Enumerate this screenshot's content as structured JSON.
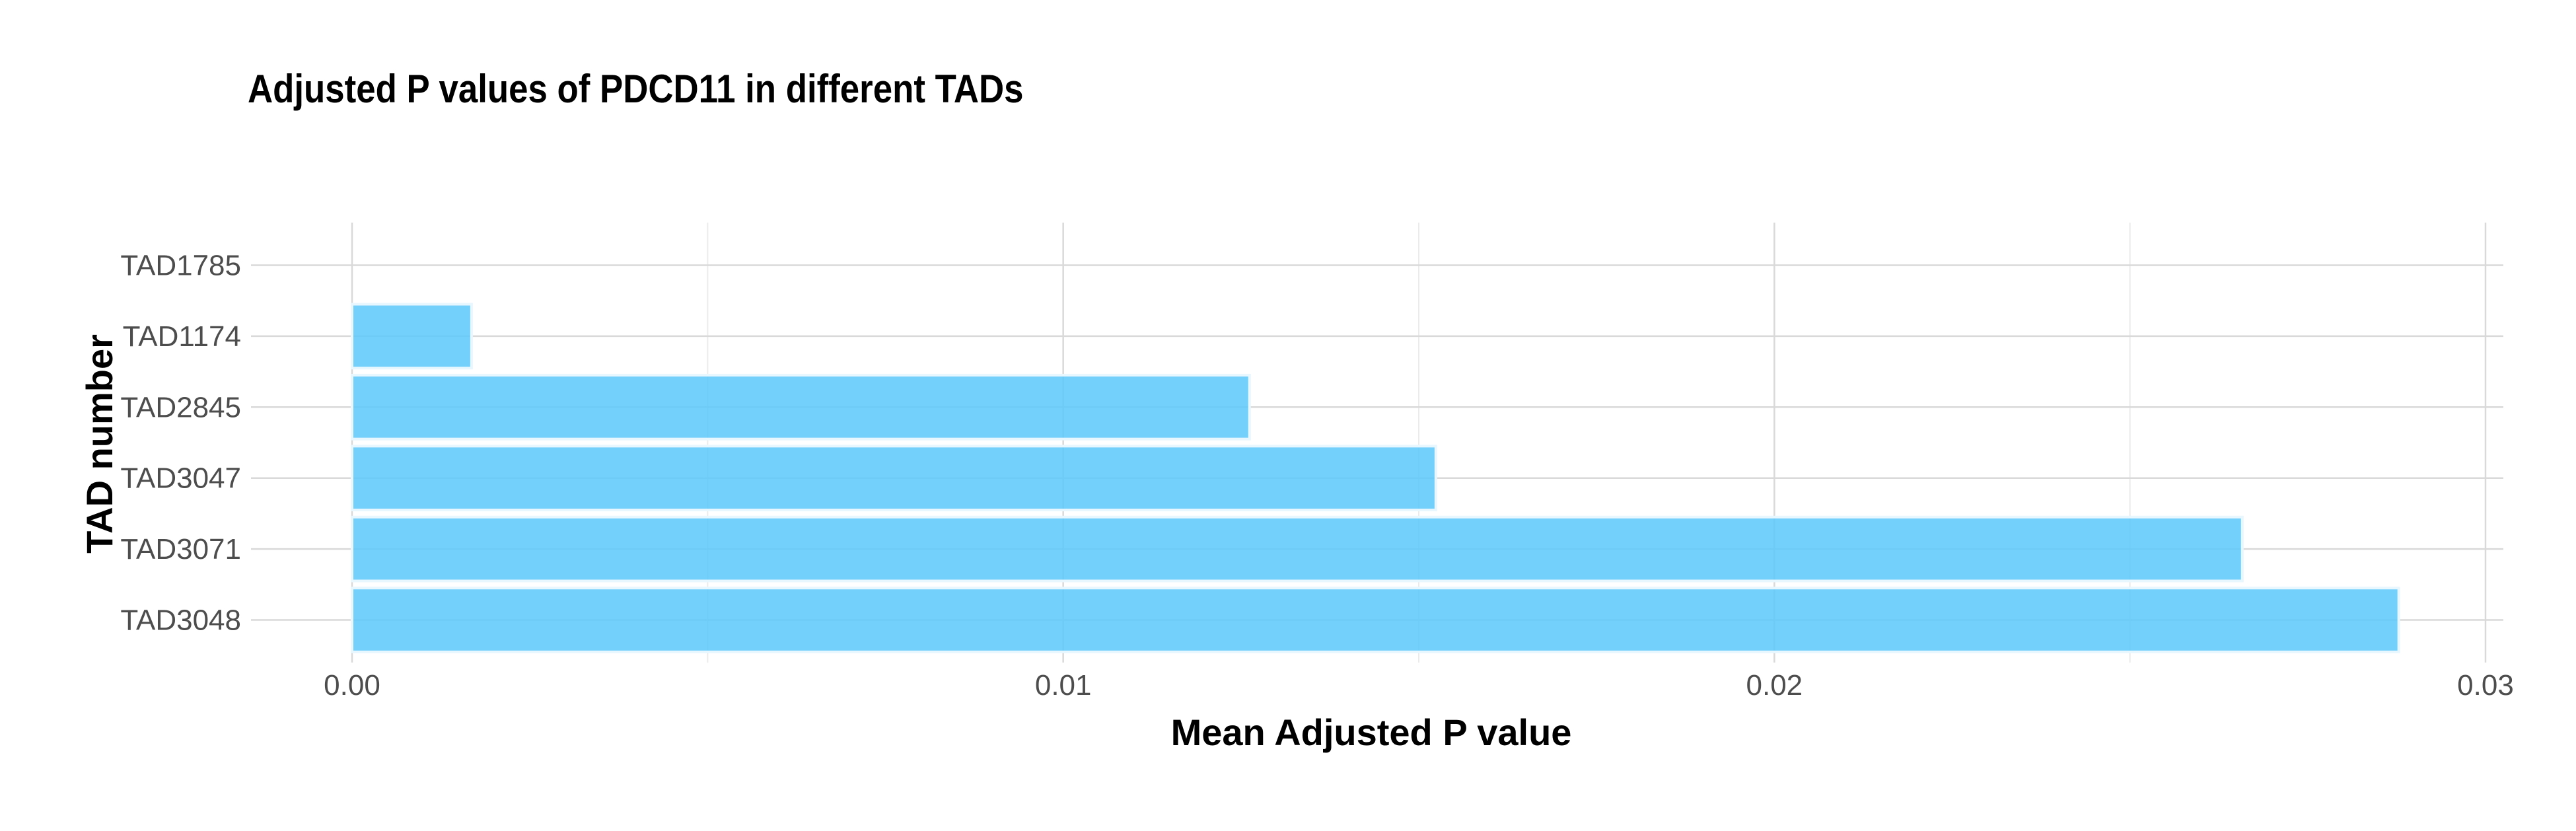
{
  "chart_data": {
    "type": "bar",
    "orientation": "horizontal",
    "title": "Adjusted P values of PDCD11 in different TADs",
    "xlabel": "Mean Adjusted P value",
    "ylabel": "TAD number",
    "categories": [
      "TAD1785",
      "TAD1174",
      "TAD2845",
      "TAD3047",
      "TAD3071",
      "TAD3048"
    ],
    "values": [
      0.0,
      0.00168,
      0.01262,
      0.01524,
      0.02658,
      0.02878
    ],
    "xlim": [
      0,
      0.03
    ],
    "xticks": [
      0.0,
      0.01,
      0.02,
      0.03
    ],
    "xtick_labels": [
      "0.00",
      "0.01",
      "0.02",
      "0.03"
    ],
    "bar_color": "#5bc8fa",
    "grid": true,
    "legend": "none"
  }
}
